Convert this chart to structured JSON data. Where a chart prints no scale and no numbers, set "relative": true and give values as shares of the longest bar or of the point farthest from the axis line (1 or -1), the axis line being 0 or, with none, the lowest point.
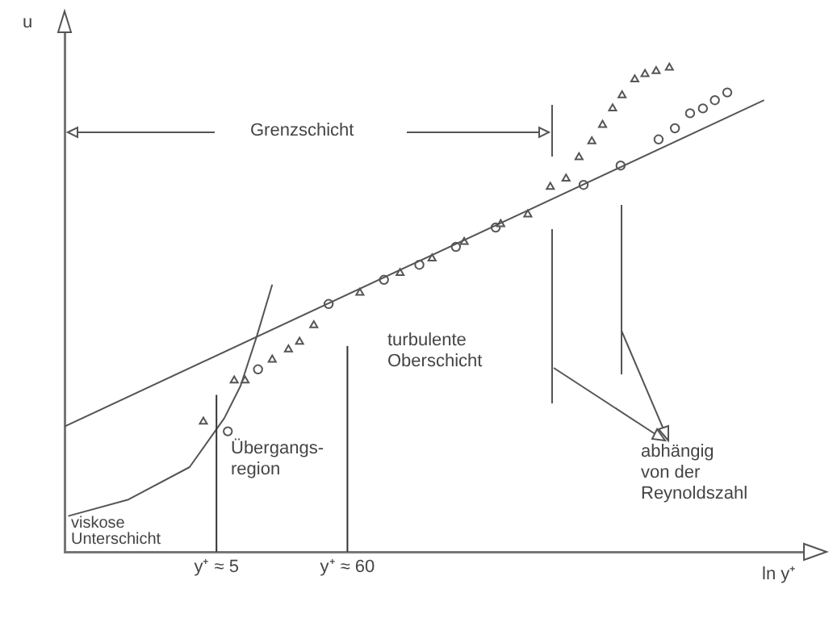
{
  "chart_data": {
    "type": "scatter",
    "relative": true,
    "log": "x",
    "xlabel": "ln y⁺",
    "ylabel": "u",
    "xlim": [
      0.28,
      430000
    ],
    "xticks": [
      {
        "value": 5,
        "label": "y⁺ ≈ 5"
      },
      {
        "value": 60,
        "label": "y⁺ ≈ 60"
      }
    ],
    "grid": false,
    "legend": false,
    "series": [
      {
        "type": "line",
        "color": "#555555",
        "marker": "none",
        "x": [
          0.28,
          163000
        ],
        "values": [
          0.259,
          0.933
        ]
      },
      {
        "type": "line",
        "color": "#555555",
        "marker": "none",
        "x": [
          0.3,
          0.94,
          3,
          5.8,
          7.9,
          10.7,
          14.4
        ],
        "values": [
          0.074,
          0.108,
          0.175,
          0.276,
          0.343,
          0.444,
          0.552
        ]
      },
      {
        "type": "scatter",
        "color": "#555555",
        "marker": "triangle",
        "x": [
          3.9,
          7,
          8.6,
          14.4,
          19.6,
          24.2,
          31.7,
          76,
          163,
          299,
          550,
          1100,
          1840,
          2820,
          3800,
          4860,
          6200,
          7600,
          9200,
          11000,
          14000,
          17000,
          21000,
          27000
        ],
        "values": [
          0.269,
          0.354,
          0.354,
          0.397,
          0.418,
          0.434,
          0.468,
          0.535,
          0.576,
          0.606,
          0.64,
          0.677,
          0.697,
          0.754,
          0.771,
          0.815,
          0.848,
          0.882,
          0.916,
          0.943,
          0.976,
          0.987,
          0.993,
          1
        ]
      },
      {
        "type": "scatter",
        "color": "#555555",
        "marker": "circle",
        "x": [
          6.2,
          11,
          42,
          120,
          235,
          470,
          1000,
          5300,
          10700,
          22000,
          30000,
          40000,
          51000,
          64000,
          81000
        ],
        "values": [
          0.249,
          0.377,
          0.512,
          0.562,
          0.593,
          0.63,
          0.67,
          0.758,
          0.798,
          0.852,
          0.875,
          0.906,
          0.916,
          0.933,
          0.949
        ]
      }
    ],
    "ref_lines": [
      {
        "axis": "x",
        "value": 5,
        "color": "#333333"
      },
      {
        "axis": "x",
        "value": 60,
        "color": "#333333"
      }
    ],
    "annotations": [
      "Grenzschicht",
      "turbulente\nOberschicht",
      "Übergangs-\nregion",
      "viskose\nUnterschicht",
      "abhängig\nvon der\nReynoldszahl"
    ]
  }
}
